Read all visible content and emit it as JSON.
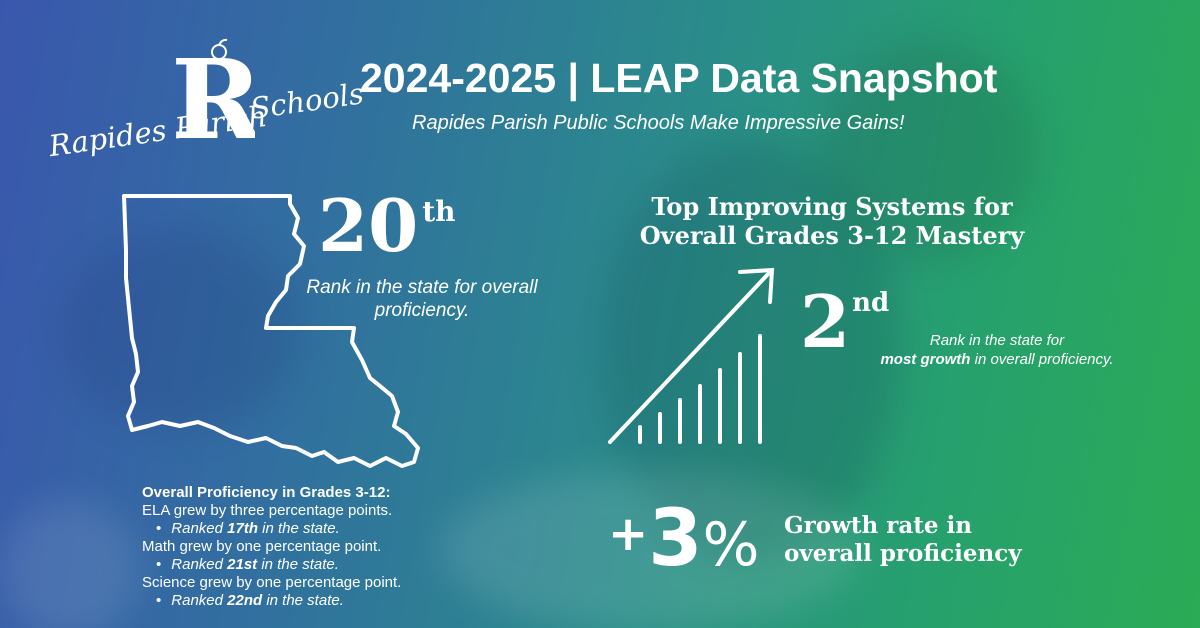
{
  "logo": {
    "name_line1": "Rapides Parish",
    "name_line2": "Schools"
  },
  "header": {
    "title": "2024-2025 | LEAP Data Snapshot",
    "subtitle": "Rapides Parish Public Schools Make Impressive Gains!"
  },
  "state_rank": {
    "value": "20",
    "suffix": "th",
    "caption": "Rank in the state for overall proficiency."
  },
  "proficiency": {
    "heading": "Overall Proficiency in Grades 3-12:",
    "items": [
      {
        "text": "ELA grew by three percentage points.",
        "rank_pre": "Ranked ",
        "rank": "17th",
        "rank_post": " in the state."
      },
      {
        "text": "Math grew by one percentage point.",
        "rank_pre": "Ranked ",
        "rank": "21st",
        "rank_post": " in the state."
      },
      {
        "text": "Science grew by one percentage point.",
        "rank_pre": "Ranked ",
        "rank": "22nd",
        "rank_post": " in the state."
      }
    ]
  },
  "improving": {
    "title_line1": "Top Improving Systems for",
    "title_line2": "Overall Grades 3-12 Mastery",
    "rank_value": "2",
    "rank_suffix": "nd",
    "caption_pre": "Rank in the state for",
    "caption_bold": "most growth",
    "caption_post": " in overall proficiency."
  },
  "growth": {
    "plus": "+",
    "number": "3",
    "percent": "%",
    "line1": "Growth rate in",
    "line2": "overall proficiency"
  },
  "icons": {
    "state": "louisiana-outline-icon",
    "chart": "growth-bars-arrow-icon"
  },
  "colors": {
    "gradient_left": "#3a57ad",
    "gradient_mid": "#2a8c8a",
    "gradient_right": "#2bab55",
    "text": "#ffffff"
  }
}
